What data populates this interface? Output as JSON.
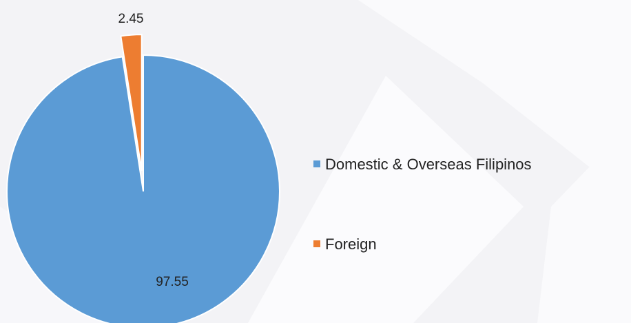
{
  "chart_data": {
    "type": "pie",
    "categories": [
      "Domestic & Overseas Filipinos",
      "Foreign"
    ],
    "values": [
      97.55,
      2.45
    ],
    "colors": [
      "#5b9bd5",
      "#ed7d31"
    ],
    "exploded": [
      false,
      true
    ],
    "legend": "right"
  }
}
